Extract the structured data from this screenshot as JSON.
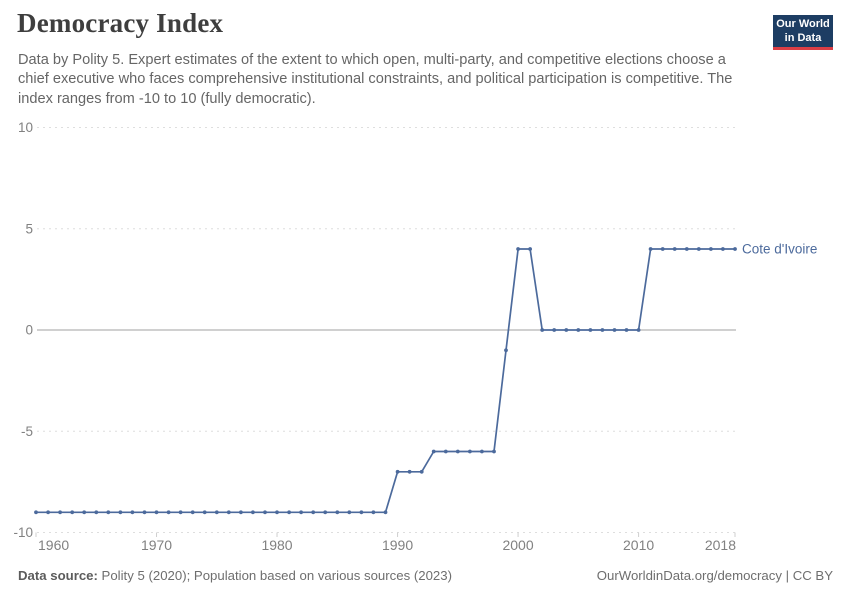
{
  "header": {
    "title": "Democracy Index",
    "subtitle_lines": [
      "Data by Polity 5. Expert estimates of the extent to which open, multi-party, and competitive elections choose a",
      "chief executive who faces comprehensive institutional constraints, and political participation is competitive. The",
      "index ranges from -10 to 10 (fully democratic)."
    ]
  },
  "logo": {
    "line1": "Our World",
    "line2": "in Data",
    "bg_color": "#1d3d63",
    "accent_color": "#dc3e45"
  },
  "chart_data": {
    "type": "line",
    "title": "Democracy Index",
    "xlabel": "",
    "ylabel": "",
    "ylim": [
      -10,
      10
    ],
    "xlim": [
      1960,
      2018
    ],
    "y_ticks": [
      10,
      5,
      0,
      -5,
      -10
    ],
    "x_ticks": [
      1960,
      1970,
      1980,
      1990,
      2000,
      2010,
      2018
    ],
    "grid": true,
    "legend_position": "end-of-line",
    "line_color": "#4C6A9C",
    "grid_color": "#dedede",
    "zero_line_color": "#a2a2a2",
    "axis_label_color": "#818181",
    "x": [
      1960,
      1961,
      1962,
      1963,
      1964,
      1965,
      1966,
      1967,
      1968,
      1969,
      1970,
      1971,
      1972,
      1973,
      1974,
      1975,
      1976,
      1977,
      1978,
      1979,
      1980,
      1981,
      1982,
      1983,
      1984,
      1985,
      1986,
      1987,
      1988,
      1989,
      1990,
      1991,
      1992,
      1993,
      1994,
      1995,
      1996,
      1997,
      1998,
      1999,
      2000,
      2001,
      2002,
      2003,
      2004,
      2005,
      2006,
      2007,
      2008,
      2009,
      2010,
      2011,
      2012,
      2013,
      2014,
      2015,
      2016,
      2017,
      2018
    ],
    "series": [
      {
        "name": "Cote d'Ivoire",
        "values": [
          -9,
          -9,
          -9,
          -9,
          -9,
          -9,
          -9,
          -9,
          -9,
          -9,
          -9,
          -9,
          -9,
          -9,
          -9,
          -9,
          -9,
          -9,
          -9,
          -9,
          -9,
          -9,
          -9,
          -9,
          -9,
          -9,
          -9,
          -9,
          -9,
          -9,
          -7,
          -7,
          -7,
          -6,
          -6,
          -6,
          -6,
          -6,
          -6,
          -1,
          4,
          4,
          0,
          0,
          0,
          0,
          0,
          0,
          0,
          0,
          0,
          4,
          4,
          4,
          4,
          4,
          4,
          4,
          4
        ]
      }
    ]
  },
  "footer": {
    "source_label": "Data source:",
    "source_text": " Polity 5 (2020); Population based on various sources (2023)",
    "credit": "OurWorldinData.org/democracy | CC BY"
  }
}
